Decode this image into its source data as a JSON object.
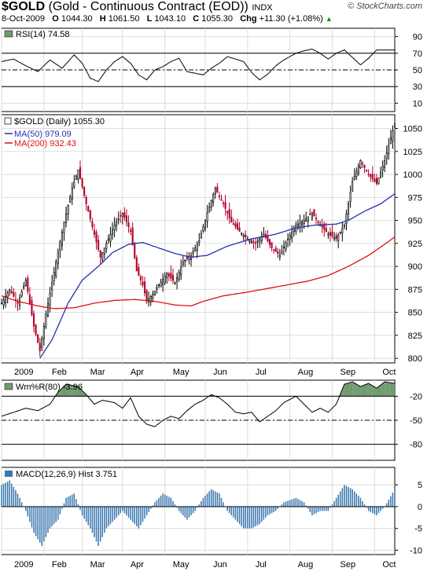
{
  "header": {
    "symbol": "$GOLD",
    "name": "(Gold - Continuous Contract (EOD))",
    "exchange": "INDX",
    "logo": "© StockCharts.com",
    "date": "8-Oct-2009",
    "open_label": "O",
    "open": "1044.30",
    "high_label": "H",
    "high": "1061.50",
    "low_label": "L",
    "low": "1043.10",
    "close_label": "C",
    "close": "1055.30",
    "chg_label": "Chg",
    "chg": "+11.30 (+1.08%)",
    "chg_arrow": "▲"
  },
  "colors": {
    "up_candle": "#000000",
    "down_candle": "#b4002a",
    "ma50": "#2233aa",
    "ma200": "#dd1111",
    "fill_green": "#6f9a6f",
    "macd_hist": "#3a78b0",
    "grid": "#dcdcdc"
  },
  "x_axis_labels": [
    "2009",
    "Feb",
    "Mar",
    "Apr",
    "May",
    "Jun",
    "Jul",
    "Aug",
    "Sep",
    "Oct"
  ],
  "chart_data": [
    {
      "type": "line",
      "panel": "rsi",
      "legend": "RSI(14) 74.58",
      "ylim": [
        0,
        100
      ],
      "yticks": [
        90,
        70,
        50,
        30,
        10
      ],
      "reference_lines": [
        70,
        50,
        30
      ],
      "keypoints": [
        [
          0,
          60
        ],
        [
          6,
          63
        ],
        [
          12,
          55
        ],
        [
          18,
          48
        ],
        [
          24,
          62
        ],
        [
          30,
          52
        ],
        [
          36,
          68
        ],
        [
          40,
          58
        ],
        [
          44,
          40
        ],
        [
          48,
          36
        ],
        [
          52,
          50
        ],
        [
          56,
          60
        ],
        [
          60,
          66
        ],
        [
          64,
          58
        ],
        [
          68,
          44
        ],
        [
          72,
          38
        ],
        [
          76,
          50
        ],
        [
          80,
          54
        ],
        [
          84,
          60
        ],
        [
          88,
          64
        ],
        [
          92,
          48
        ],
        [
          96,
          46
        ],
        [
          100,
          44
        ],
        [
          104,
          52
        ],
        [
          108,
          58
        ],
        [
          112,
          66
        ],
        [
          116,
          63
        ],
        [
          120,
          60
        ],
        [
          124,
          47
        ],
        [
          128,
          38
        ],
        [
          132,
          45
        ],
        [
          136,
          55
        ],
        [
          140,
          62
        ],
        [
          146,
          70
        ],
        [
          150,
          73
        ],
        [
          154,
          75
        ],
        [
          158,
          70
        ],
        [
          162,
          63
        ],
        [
          166,
          70
        ],
        [
          170,
          74
        ],
        [
          174,
          65
        ],
        [
          178,
          56
        ],
        [
          182,
          64
        ],
        [
          186,
          74
        ]
      ]
    },
    {
      "type": "candlestick",
      "panel": "price",
      "legend": "$GOLD (Daily) 1055.30",
      "ylim": [
        795,
        1065
      ],
      "yticks": [
        1050,
        1025,
        1000,
        975,
        950,
        925,
        900,
        875,
        850,
        825,
        800
      ],
      "close_keypoints": [
        [
          0,
          860
        ],
        [
          4,
          875
        ],
        [
          8,
          860
        ],
        [
          12,
          885
        ],
        [
          16,
          835
        ],
        [
          19,
          808
        ],
        [
          22,
          848
        ],
        [
          27,
          905
        ],
        [
          31,
          948
        ],
        [
          35,
          985
        ],
        [
          38,
          1005
        ],
        [
          42,
          968
        ],
        [
          46,
          935
        ],
        [
          49,
          910
        ],
        [
          52,
          925
        ],
        [
          56,
          945
        ],
        [
          60,
          958
        ],
        [
          64,
          938
        ],
        [
          67,
          895
        ],
        [
          70,
          880
        ],
        [
          72,
          862
        ],
        [
          75,
          870
        ],
        [
          78,
          880
        ],
        [
          82,
          892
        ],
        [
          86,
          882
        ],
        [
          90,
          905
        ],
        [
          94,
          912
        ],
        [
          98,
          928
        ],
        [
          102,
          958
        ],
        [
          106,
          985
        ],
        [
          110,
          968
        ],
        [
          114,
          948
        ],
        [
          118,
          938
        ],
        [
          122,
          930
        ],
        [
          126,
          925
        ],
        [
          130,
          935
        ],
        [
          134,
          920
        ],
        [
          138,
          912
        ],
        [
          142,
          930
        ],
        [
          146,
          945
        ],
        [
          150,
          950
        ],
        [
          154,
          958
        ],
        [
          158,
          945
        ],
        [
          162,
          935
        ],
        [
          166,
          930
        ],
        [
          170,
          945
        ],
        [
          174,
          992
        ],
        [
          178,
          1015
        ],
        [
          182,
          1000
        ],
        [
          186,
          990
        ],
        [
          190,
          1015
        ],
        [
          193,
          1040
        ],
        [
          195,
          1055
        ]
      ],
      "series": [
        {
          "name": "MA(50) 979.09",
          "keypoints": [
            [
              19,
              800
            ],
            [
              25,
              820
            ],
            [
              33,
              860
            ],
            [
              40,
              885
            ],
            [
              48,
              900
            ],
            [
              55,
              915
            ],
            [
              63,
              924
            ],
            [
              70,
              926
            ],
            [
              78,
              920
            ],
            [
              86,
              914
            ],
            [
              94,
              910
            ],
            [
              102,
              912
            ],
            [
              112,
              922
            ],
            [
              124,
              930
            ],
            [
              136,
              935
            ],
            [
              146,
              942
            ],
            [
              156,
              945
            ],
            [
              166,
              946
            ],
            [
              172,
              950
            ],
            [
              180,
              960
            ],
            [
              188,
              968
            ],
            [
              195,
              979
            ]
          ]
        },
        {
          "name": "MA(200) 932.43",
          "keypoints": [
            [
              0,
              868
            ],
            [
              8,
              862
            ],
            [
              18,
              857
            ],
            [
              26,
              854
            ],
            [
              36,
              855
            ],
            [
              46,
              860
            ],
            [
              56,
              863
            ],
            [
              66,
              864
            ],
            [
              76,
              862
            ],
            [
              86,
              858
            ],
            [
              94,
              857
            ],
            [
              100,
              862
            ],
            [
              110,
              868
            ],
            [
              122,
              872
            ],
            [
              132,
              876
            ],
            [
              142,
              880
            ],
            [
              152,
              884
            ],
            [
              162,
              890
            ],
            [
              172,
              900
            ],
            [
              182,
              912
            ],
            [
              190,
              924
            ],
            [
              195,
              932
            ]
          ]
        }
      ]
    },
    {
      "type": "line",
      "panel": "williams",
      "legend": "Wm%R(80) -3.96",
      "ylim": [
        -100,
        0
      ],
      "yticks": [
        -20,
        -50,
        -80
      ],
      "reference_lines": [
        -20,
        -50,
        -80
      ],
      "keypoints": [
        [
          0,
          -45
        ],
        [
          6,
          -40
        ],
        [
          12,
          -35
        ],
        [
          18,
          -38
        ],
        [
          24,
          -30
        ],
        [
          28,
          -15
        ],
        [
          32,
          -5
        ],
        [
          38,
          -8
        ],
        [
          42,
          -18
        ],
        [
          46,
          -30
        ],
        [
          50,
          -25
        ],
        [
          56,
          -28
        ],
        [
          60,
          -35
        ],
        [
          64,
          -22
        ],
        [
          68,
          -45
        ],
        [
          72,
          -55
        ],
        [
          76,
          -58
        ],
        [
          80,
          -50
        ],
        [
          84,
          -45
        ],
        [
          88,
          -48
        ],
        [
          92,
          -38
        ],
        [
          96,
          -30
        ],
        [
          100,
          -25
        ],
        [
          104,
          -18
        ],
        [
          108,
          -22
        ],
        [
          112,
          -30
        ],
        [
          116,
          -40
        ],
        [
          120,
          -42
        ],
        [
          124,
          -40
        ],
        [
          128,
          -52
        ],
        [
          132,
          -45
        ],
        [
          136,
          -38
        ],
        [
          140,
          -28
        ],
        [
          146,
          -20
        ],
        [
          150,
          -30
        ],
        [
          154,
          -40
        ],
        [
          158,
          -35
        ],
        [
          162,
          -40
        ],
        [
          166,
          -30
        ],
        [
          170,
          -5
        ],
        [
          174,
          -2
        ],
        [
          178,
          -8
        ],
        [
          182,
          -4
        ],
        [
          186,
          -10
        ],
        [
          190,
          -2
        ],
        [
          195,
          -4
        ]
      ]
    },
    {
      "type": "bar",
      "panel": "macd",
      "legend": "MACD(12,26,9) Hist 3.751",
      "ylim": [
        -11,
        9
      ],
      "yticks": [
        5,
        0,
        -5,
        -10
      ],
      "keypoints": [
        [
          0,
          5
        ],
        [
          4,
          6
        ],
        [
          8,
          3
        ],
        [
          12,
          -1
        ],
        [
          16,
          -6
        ],
        [
          20,
          -9
        ],
        [
          24,
          -5
        ],
        [
          28,
          -3
        ],
        [
          32,
          2
        ],
        [
          36,
          3
        ],
        [
          40,
          -2
        ],
        [
          44,
          -5
        ],
        [
          48,
          -9
        ],
        [
          52,
          -5
        ],
        [
          56,
          -3
        ],
        [
          60,
          -1
        ],
        [
          64,
          -3
        ],
        [
          68,
          -5
        ],
        [
          72,
          -2
        ],
        [
          76,
          1
        ],
        [
          80,
          3
        ],
        [
          84,
          2
        ],
        [
          88,
          -1
        ],
        [
          92,
          -3
        ],
        [
          96,
          -1
        ],
        [
          100,
          2
        ],
        [
          104,
          4
        ],
        [
          108,
          3
        ],
        [
          112,
          -1
        ],
        [
          116,
          -3
        ],
        [
          120,
          -5
        ],
        [
          124,
          -5
        ],
        [
          128,
          -4
        ],
        [
          132,
          -2
        ],
        [
          136,
          -1
        ],
        [
          140,
          1
        ],
        [
          146,
          2
        ],
        [
          150,
          1
        ],
        [
          154,
          -2
        ],
        [
          158,
          -1
        ],
        [
          162,
          -1
        ],
        [
          166,
          2
        ],
        [
          170,
          5
        ],
        [
          174,
          4
        ],
        [
          178,
          2
        ],
        [
          182,
          -1
        ],
        [
          186,
          -2
        ],
        [
          190,
          0
        ],
        [
          195,
          4
        ]
      ]
    }
  ]
}
